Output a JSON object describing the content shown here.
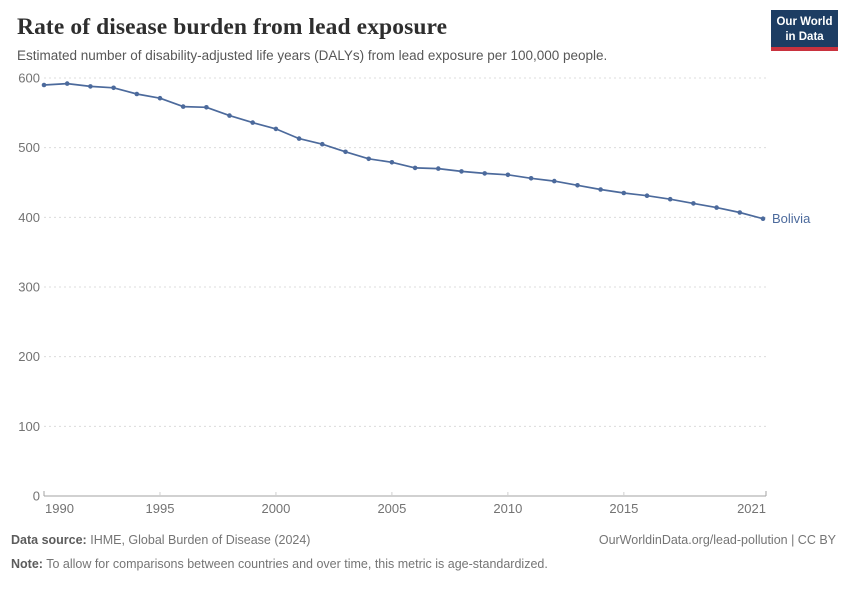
{
  "header": {
    "title": "Rate of disease burden from lead exposure",
    "subtitle": "Estimated number of disability-adjusted life years (DALYs) from lead exposure per 100,000 people.",
    "logo": {
      "line1": "Our World",
      "line2": "in Data",
      "bg_color": "#1d3d63",
      "accent_color": "#c9323e"
    }
  },
  "chart_data": {
    "type": "line",
    "title": "Rate of disease burden from lead exposure",
    "xlabel": "",
    "ylabel": "",
    "ylim": [
      0,
      600
    ],
    "yticks": [
      0,
      100,
      200,
      300,
      400,
      500,
      600
    ],
    "xticks": [
      1990,
      1995,
      2000,
      2005,
      2010,
      2015,
      2021
    ],
    "grid": "horizontal-dashed",
    "legend_position": "end-of-line-label",
    "x": [
      1990,
      1991,
      1992,
      1993,
      1994,
      1995,
      1996,
      1997,
      1998,
      1999,
      2000,
      2001,
      2002,
      2003,
      2004,
      2005,
      2006,
      2007,
      2008,
      2009,
      2010,
      2011,
      2012,
      2013,
      2014,
      2015,
      2016,
      2017,
      2018,
      2019,
      2020,
      2021
    ],
    "series": [
      {
        "name": "Bolivia",
        "color": "#4c6a9c",
        "values": [
          590,
          592,
          588,
          586,
          577,
          571,
          559,
          558,
          546,
          536,
          527,
          513,
          505,
          494,
          484,
          479,
          471,
          470,
          466,
          463,
          461,
          456,
          452,
          446,
          440,
          435,
          431,
          426,
          420,
          414,
          407,
          398
        ]
      }
    ],
    "colors": {
      "grid": "#dcdcdc",
      "axis": "#a3a3a3",
      "tick_text": "#737373"
    }
  },
  "footer": {
    "source_label": "Data source:",
    "source_text": "IHME, Global Burden of Disease (2024)",
    "credit": "OurWorldinData.org/lead-pollution | CC BY",
    "note_label": "Note:",
    "note_text": "To allow for comparisons between countries and over time, this metric is age-standardized."
  }
}
